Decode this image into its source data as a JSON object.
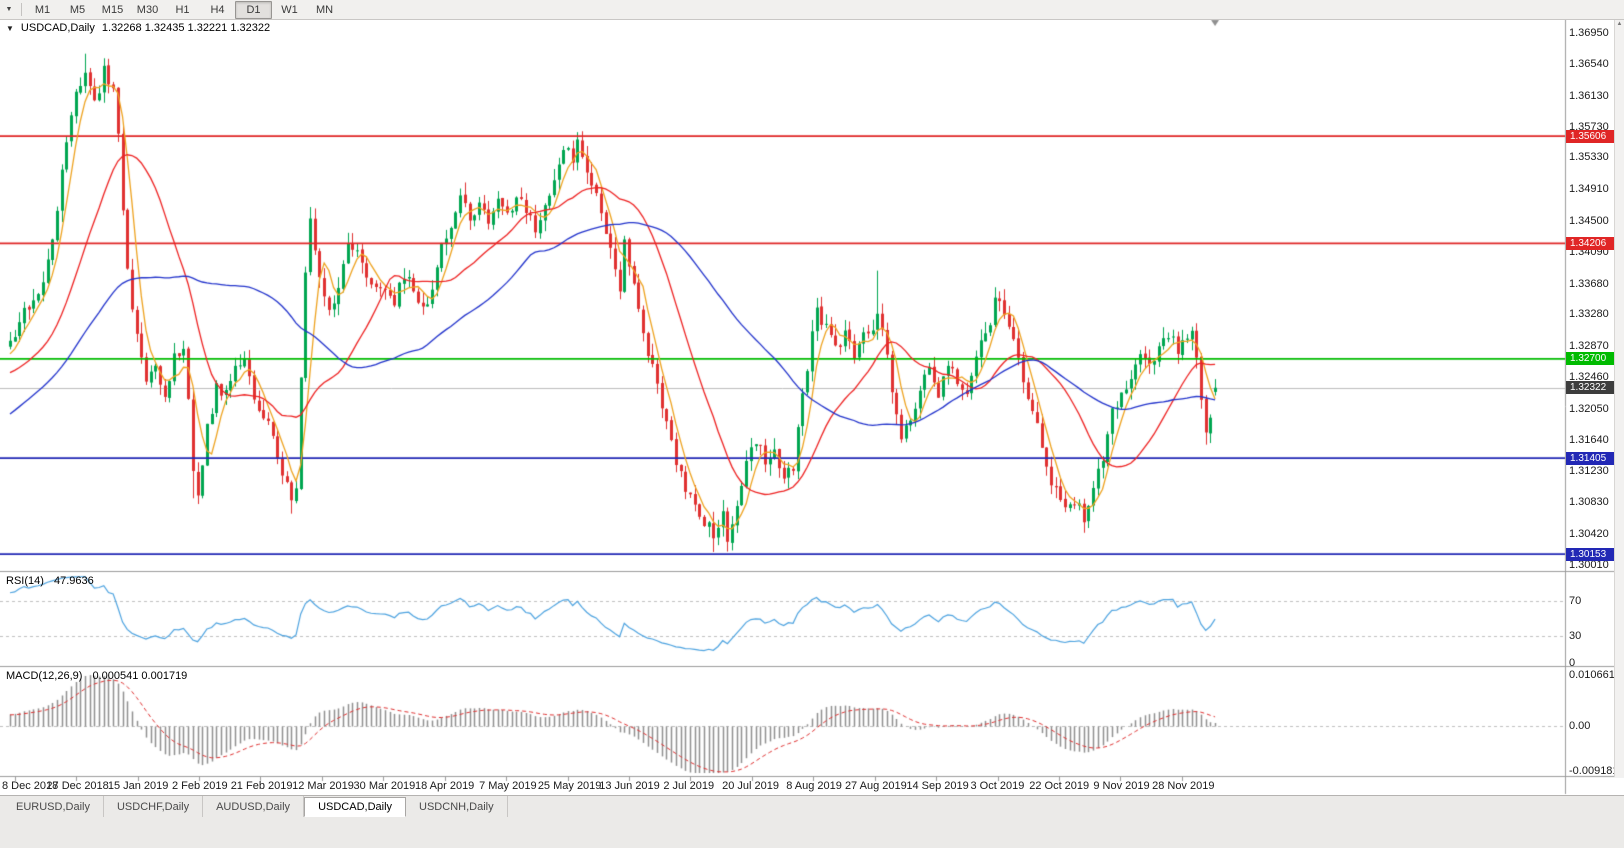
{
  "toolbar": {
    "timeframes": [
      "M1",
      "M5",
      "M15",
      "M30",
      "H1",
      "H4",
      "D1",
      "W1",
      "MN"
    ],
    "active": "D1"
  },
  "header": {
    "symbol": "USDCAD,Daily",
    "ohlc": "1.32268 1.32435 1.32221 1.32322"
  },
  "rsi_panel": {
    "label": "RSI(14)",
    "value": "47.9636",
    "axis": [
      "70",
      "30",
      "0"
    ]
  },
  "macd_panel": {
    "label": "MACD(12,26,9)",
    "values": "0.000541 0.001719",
    "axis": [
      "0.0106615",
      "0.00",
      "-0.0091810"
    ]
  },
  "tabs": {
    "items": [
      "EURUSD,Daily",
      "USDCHF,Daily",
      "AUDUSD,Daily",
      "USDCAD,Daily",
      "USDCNH,Daily"
    ],
    "active": "USDCAD,Daily"
  },
  "chart_data": {
    "type": "candlestick",
    "title": "USDCAD,Daily",
    "ohlc_display": {
      "open": "1.32268",
      "high": "1.32435",
      "low": "1.32221",
      "close": "1.32322"
    },
    "price_axis": [
      "1.36950",
      "1.36540",
      "1.36130",
      "1.35730",
      "1.35330",
      "1.34910",
      "1.34500",
      "1.34090",
      "1.33680",
      "1.33280",
      "1.32870",
      "1.32460",
      "1.32050",
      "1.31640",
      "1.31230",
      "1.30830",
      "1.30420",
      "1.30010"
    ],
    "x_axis": {
      "labels": [
        "8 Dec 2018",
        "27 Dec 2018",
        "15 Jan 2019",
        "2 Feb 2019",
        "21 Feb 2019",
        "12 Mar 2019",
        "30 Mar 2019",
        "18 Apr 2019",
        "7 May 2019",
        "25 May 2019",
        "13 Jun 2019",
        "2 Jul 2019",
        "20 Jul 2019",
        "8 Aug 2019",
        "27 Aug 2019",
        "14 Sep 2019",
        "3 Oct 2019",
        "22 Oct 2019",
        "9 Nov 2019",
        "28 Nov 2019"
      ],
      "first_index": 1,
      "tick_step": 13.1
    },
    "levels": [
      {
        "price": 1.35606,
        "label": "1.35606",
        "color": "#e02626",
        "type": "resistance"
      },
      {
        "price": 1.34206,
        "label": "1.34206",
        "color": "#e02626",
        "type": "resistance"
      },
      {
        "price": 1.327,
        "label": "1.32700",
        "color": "#00bb00",
        "type": "pivot"
      },
      {
        "price": 1.31405,
        "label": "1.31405",
        "color": "#2228b5",
        "type": "support"
      },
      {
        "price": 1.30153,
        "label": "1.30153",
        "color": "#2228b5",
        "type": "support"
      }
    ],
    "last_price": {
      "value": 1.32322,
      "label": "1.32322",
      "color": "#3d3d3d"
    },
    "colors": {
      "up": "#00a651",
      "down": "#e03131",
      "background": "#ffffff",
      "last_price_line": "#bdbdbd",
      "grid": "#c0c0c0"
    },
    "moving_averages": [
      {
        "period": 5,
        "color": "#eea320"
      },
      {
        "period": 20,
        "color": "#ee2222"
      },
      {
        "period": 50,
        "color": "#2233cc"
      }
    ],
    "rsi": {
      "period": 14,
      "color": "#4da3e0",
      "levels": [
        70,
        30,
        0
      ],
      "current": 47.9636
    },
    "macd": {
      "fast": 12,
      "slow": 26,
      "signal": 9,
      "axis_max": 0.0106615,
      "axis_min": -0.009181,
      "hist_color": "#8f8f8f",
      "signal_color": "#e03030",
      "current_macd": 0.000541,
      "current_signal": 0.001719
    },
    "candles": {
      "count": 258,
      "pre_history": 50,
      "seed": 11,
      "final": [
        1.32268,
        1.32435,
        1.32221,
        1.32322
      ],
      "extremes": [
        [
          16,
          1.3668,
          null
        ],
        [
          20,
          1.3662,
          null
        ],
        [
          39,
          null,
          1.3088
        ],
        [
          60,
          null,
          1.3068
        ],
        [
          64,
          1.3468,
          null
        ],
        [
          97,
          1.35,
          null
        ],
        [
          121,
          1.3562,
          null
        ],
        [
          150,
          null,
          1.3018
        ],
        [
          154,
          null,
          1.302
        ],
        [
          185,
          1.3385,
          null
        ],
        [
          210,
          1.3358,
          null
        ],
        [
          229,
          null,
          1.3058
        ],
        [
          255,
          null,
          1.3158
        ]
      ],
      "waypoints": [
        [
          -50,
          1.306
        ],
        [
          -40,
          1.3125
        ],
        [
          -30,
          1.32
        ],
        [
          -20,
          1.3245
        ],
        [
          -10,
          1.3235
        ],
        [
          -4,
          1.3265
        ],
        [
          0,
          1.329
        ],
        [
          3,
          1.333
        ],
        [
          6,
          1.3355
        ],
        [
          9,
          1.342
        ],
        [
          12,
          1.3555
        ],
        [
          14,
          1.362
        ],
        [
          16,
          1.3648
        ],
        [
          18,
          1.36
        ],
        [
          20,
          1.3645
        ],
        [
          22,
          1.3615
        ],
        [
          23,
          1.356
        ],
        [
          25,
          1.338
        ],
        [
          27,
          1.33
        ],
        [
          29,
          1.3235
        ],
        [
          31,
          1.3258
        ],
        [
          33,
          1.3222
        ],
        [
          35,
          1.327
        ],
        [
          37,
          1.3282
        ],
        [
          38,
          1.321
        ],
        [
          39,
          1.313
        ],
        [
          40,
          1.3098
        ],
        [
          42,
          1.318
        ],
        [
          44,
          1.3232
        ],
        [
          46,
          1.3225
        ],
        [
          48,
          1.3258
        ],
        [
          50,
          1.3268
        ],
        [
          52,
          1.3222
        ],
        [
          54,
          1.3192
        ],
        [
          56,
          1.3172
        ],
        [
          58,
          1.3122
        ],
        [
          60,
          1.3082
        ],
        [
          61,
          1.3105
        ],
        [
          62,
          1.325
        ],
        [
          63,
          1.339
        ],
        [
          64,
          1.3445
        ],
        [
          66,
          1.3372
        ],
        [
          68,
          1.3338
        ],
        [
          70,
          1.3362
        ],
        [
          72,
          1.342
        ],
        [
          74,
          1.3412
        ],
        [
          76,
          1.3382
        ],
        [
          78,
          1.3358
        ],
        [
          80,
          1.3368
        ],
        [
          82,
          1.3348
        ],
        [
          84,
          1.3382
        ],
        [
          86,
          1.3362
        ],
        [
          88,
          1.3332
        ],
        [
          90,
          1.3362
        ],
        [
          92,
          1.3412
        ],
        [
          94,
          1.3442
        ],
        [
          96,
          1.3482
        ],
        [
          98,
          1.3452
        ],
        [
          100,
          1.3472
        ],
        [
          102,
          1.3442
        ],
        [
          104,
          1.3476
        ],
        [
          106,
          1.3456
        ],
        [
          108,
          1.3482
        ],
        [
          110,
          1.3466
        ],
        [
          112,
          1.3442
        ],
        [
          114,
          1.3462
        ],
        [
          116,
          1.3502
        ],
        [
          118,
          1.3542
        ],
        [
          120,
          1.3532
        ],
        [
          121,
          1.3558
        ],
        [
          123,
          1.3512
        ],
        [
          125,
          1.3482
        ],
        [
          127,
          1.3432
        ],
        [
          129,
          1.3392
        ],
        [
          130,
          1.3362
        ],
        [
          131,
          1.3418
        ],
        [
          132,
          1.3398
        ],
        [
          134,
          1.3332
        ],
        [
          136,
          1.3282
        ],
        [
          138,
          1.3232
        ],
        [
          140,
          1.3192
        ],
        [
          142,
          1.3132
        ],
        [
          144,
          1.3102
        ],
        [
          146,
          1.3086
        ],
        [
          148,
          1.3056
        ],
        [
          150,
          1.3042
        ],
        [
          152,
          1.3066
        ],
        [
          153,
          1.3036
        ],
        [
          155,
          1.3082
        ],
        [
          157,
          1.314
        ],
        [
          159,
          1.3166
        ],
        [
          161,
          1.3132
        ],
        [
          163,
          1.3152
        ],
        [
          165,
          1.3112
        ],
        [
          167,
          1.3132
        ],
        [
          169,
          1.3222
        ],
        [
          171,
          1.3302
        ],
        [
          172,
          1.3332
        ],
        [
          174,
          1.3312
        ],
        [
          176,
          1.3282
        ],
        [
          178,
          1.3302
        ],
        [
          180,
          1.3272
        ],
        [
          182,
          1.3302
        ],
        [
          184,
          1.3312
        ],
        [
          185,
          1.3332
        ],
        [
          186,
          1.3312
        ],
        [
          188,
          1.3232
        ],
        [
          190,
          1.3162
        ],
        [
          192,
          1.3192
        ],
        [
          194,
          1.3232
        ],
        [
          196,
          1.3252
        ],
        [
          198,
          1.3222
        ],
        [
          200,
          1.3262
        ],
        [
          202,
          1.3242
        ],
        [
          204,
          1.3232
        ],
        [
          206,
          1.3272
        ],
        [
          208,
          1.3302
        ],
        [
          210,
          1.3342
        ],
        [
          212,
          1.3332
        ],
        [
          214,
          1.3292
        ],
        [
          216,
          1.3242
        ],
        [
          218,
          1.3202
        ],
        [
          220,
          1.3162
        ],
        [
          222,
          1.3112
        ],
        [
          224,
          1.3092
        ],
        [
          226,
          1.3072
        ],
        [
          228,
          1.3086
        ],
        [
          229,
          1.3062
        ],
        [
          231,
          1.3102
        ],
        [
          233,
          1.3142
        ],
        [
          235,
          1.3205
        ],
        [
          237,
          1.3222
        ],
        [
          239,
          1.3252
        ],
        [
          241,
          1.3272
        ],
        [
          243,
          1.3256
        ],
        [
          245,
          1.3292
        ],
        [
          247,
          1.3302
        ],
        [
          249,
          1.3282
        ],
        [
          251,
          1.3302
        ],
        [
          252,
          1.3312
        ],
        [
          253,
          1.3272
        ],
        [
          254,
          1.3212
        ],
        [
          255,
          1.3176
        ],
        [
          256,
          1.3192
        ],
        [
          257,
          1.32322
        ]
      ]
    }
  }
}
